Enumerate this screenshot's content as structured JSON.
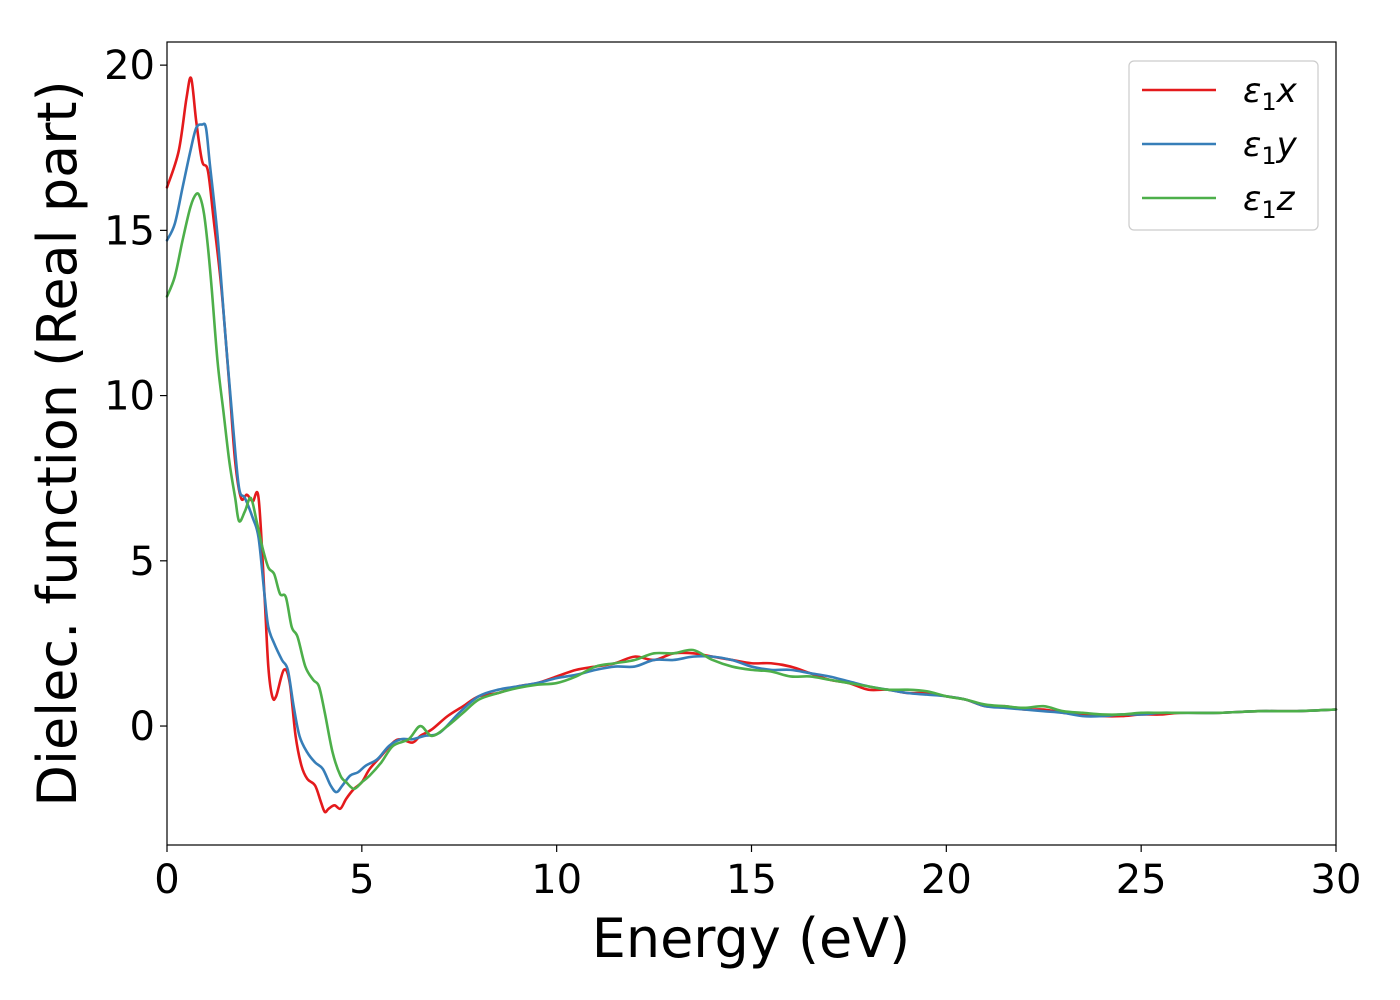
{
  "chart_data": {
    "type": "line",
    "title": "",
    "xlabel": "Energy (eV)",
    "ylabel": "Dielec. function (Real part)",
    "xlim": [
      0,
      30
    ],
    "ylim": [
      -3.6,
      20.7
    ],
    "xticks": [
      0,
      5,
      10,
      15,
      20,
      25,
      30
    ],
    "yticks": [
      0,
      5,
      10,
      15,
      20
    ],
    "grid": false,
    "legend_position": "top-right",
    "legend": [
      {
        "id": "x",
        "symbol": "ε",
        "sub": "1",
        "axis": "x",
        "color": "#e41a1c"
      },
      {
        "id": "y",
        "symbol": "ε",
        "sub": "1",
        "axis": "y",
        "color": "#377eb8"
      },
      {
        "id": "z",
        "symbol": "ε",
        "sub": "1",
        "axis": "z",
        "color": "#4daf4a"
      }
    ],
    "series": [
      {
        "id": "x",
        "color": "#e41a1c",
        "x": [
          0,
          0.3,
          0.5,
          0.62,
          0.75,
          0.9,
          1.05,
          1.2,
          1.4,
          1.6,
          1.75,
          1.9,
          2.05,
          2.2,
          2.35,
          2.5,
          2.6,
          2.7,
          2.8,
          3.0,
          3.15,
          3.3,
          3.45,
          3.6,
          3.8,
          3.95,
          4.05,
          4.15,
          4.3,
          4.45,
          4.6,
          4.8,
          5.0,
          5.2,
          5.5,
          5.8,
          6.0,
          6.3,
          6.5,
          6.8,
          7.2,
          7.6,
          8.0,
          8.5,
          9.0,
          9.5,
          10.0,
          10.5,
          11.0,
          11.5,
          12.0,
          12.5,
          13.0,
          13.5,
          14.0,
          14.5,
          15.0,
          15.5,
          16.0,
          16.5,
          17.0,
          17.5,
          18.0,
          18.5,
          19.0,
          19.5,
          20.0,
          20.5,
          21.0,
          21.5,
          22.0,
          22.5,
          23.0,
          23.5,
          24.0,
          24.5,
          25.0,
          25.5,
          26.0,
          27.0,
          28.0,
          29.0,
          30.0
        ],
        "y": [
          16.3,
          17.4,
          19.0,
          19.6,
          18.3,
          17.1,
          16.8,
          15.3,
          13.2,
          10.3,
          8.0,
          6.9,
          7.0,
          6.8,
          6.9,
          4.0,
          1.8,
          0.9,
          0.9,
          1.7,
          1.3,
          -0.3,
          -1.2,
          -1.6,
          -1.8,
          -2.3,
          -2.6,
          -2.5,
          -2.4,
          -2.5,
          -2.2,
          -1.9,
          -1.7,
          -1.3,
          -0.9,
          -0.5,
          -0.4,
          -0.5,
          -0.3,
          -0.1,
          0.3,
          0.6,
          0.9,
          1.0,
          1.2,
          1.3,
          1.5,
          1.7,
          1.8,
          1.9,
          2.1,
          2.0,
          2.2,
          2.2,
          2.1,
          2.0,
          1.9,
          1.9,
          1.8,
          1.6,
          1.4,
          1.3,
          1.1,
          1.1,
          1.0,
          1.0,
          0.9,
          0.8,
          0.6,
          0.6,
          0.5,
          0.5,
          0.4,
          0.35,
          0.3,
          0.3,
          0.35,
          0.35,
          0.4,
          0.4,
          0.45,
          0.45,
          0.5
        ]
      },
      {
        "id": "y",
        "color": "#377eb8",
        "x": [
          0,
          0.2,
          0.4,
          0.6,
          0.75,
          0.9,
          1.0,
          1.1,
          1.3,
          1.5,
          1.7,
          1.85,
          2.0,
          2.2,
          2.35,
          2.5,
          2.6,
          2.75,
          2.95,
          3.1,
          3.25,
          3.4,
          3.6,
          3.8,
          4.0,
          4.2,
          4.35,
          4.5,
          4.7,
          4.9,
          5.1,
          5.4,
          5.7,
          6.0,
          6.3,
          6.6,
          7.0,
          7.5,
          8.0,
          8.5,
          9.0,
          9.5,
          10.0,
          10.5,
          11.0,
          11.5,
          12.0,
          12.5,
          13.0,
          13.5,
          14.0,
          14.5,
          15.0,
          15.5,
          16.0,
          16.5,
          17.0,
          17.5,
          18.0,
          18.5,
          19.0,
          19.5,
          20.0,
          20.5,
          21.0,
          21.5,
          22.0,
          22.5,
          23.0,
          23.5,
          24.0,
          24.5,
          25.0,
          25.5,
          26.0,
          27.0,
          28.0,
          29.0,
          30.0
        ],
        "y": [
          14.7,
          15.2,
          16.3,
          17.4,
          18.1,
          18.2,
          18.1,
          17.0,
          14.8,
          11.8,
          9.0,
          7.2,
          6.9,
          6.3,
          5.7,
          4.0,
          3.0,
          2.5,
          2.0,
          1.7,
          0.6,
          -0.3,
          -0.8,
          -1.1,
          -1.3,
          -1.8,
          -2.0,
          -1.8,
          -1.5,
          -1.4,
          -1.2,
          -1.0,
          -0.6,
          -0.4,
          -0.4,
          -0.3,
          -0.2,
          0.4,
          0.9,
          1.1,
          1.2,
          1.3,
          1.45,
          1.55,
          1.7,
          1.8,
          1.8,
          2.0,
          2.0,
          2.1,
          2.1,
          2.0,
          1.8,
          1.7,
          1.7,
          1.6,
          1.5,
          1.35,
          1.2,
          1.1,
          1.0,
          0.95,
          0.9,
          0.8,
          0.6,
          0.55,
          0.5,
          0.45,
          0.4,
          0.3,
          0.3,
          0.35,
          0.35,
          0.4,
          0.4,
          0.4,
          0.45,
          0.45,
          0.5
        ]
      },
      {
        "id": "z",
        "color": "#4daf4a",
        "x": [
          0,
          0.2,
          0.4,
          0.6,
          0.75,
          0.85,
          0.95,
          1.05,
          1.15,
          1.3,
          1.45,
          1.6,
          1.75,
          1.85,
          2.0,
          2.15,
          2.3,
          2.45,
          2.6,
          2.75,
          2.9,
          3.05,
          3.2,
          3.35,
          3.55,
          3.75,
          3.9,
          4.05,
          4.25,
          4.45,
          4.6,
          4.8,
          5.0,
          5.2,
          5.5,
          5.8,
          6.2,
          6.5,
          6.8,
          7.2,
          7.6,
          8.0,
          8.5,
          9.0,
          9.5,
          10.0,
          10.5,
          11.0,
          11.5,
          12.0,
          12.5,
          13.0,
          13.5,
          14.0,
          14.5,
          15.0,
          15.5,
          16.0,
          16.5,
          17.0,
          17.5,
          18.0,
          18.5,
          19.0,
          19.5,
          20.0,
          20.5,
          21.0,
          21.5,
          22.0,
          22.5,
          23.0,
          23.5,
          24.0,
          24.5,
          25.0,
          25.5,
          26.0,
          27.0,
          28.0,
          29.0,
          30.0
        ],
        "y": [
          13.0,
          13.6,
          14.7,
          15.7,
          16.1,
          16.0,
          15.5,
          14.5,
          13.2,
          11.0,
          9.5,
          8.0,
          6.9,
          6.2,
          6.5,
          6.9,
          6.2,
          5.4,
          4.8,
          4.6,
          4.0,
          3.9,
          3.0,
          2.7,
          1.8,
          1.4,
          1.2,
          0.4,
          -0.8,
          -1.5,
          -1.7,
          -1.9,
          -1.7,
          -1.5,
          -1.1,
          -0.6,
          -0.4,
          0.0,
          -0.3,
          0.0,
          0.4,
          0.8,
          1.0,
          1.15,
          1.25,
          1.3,
          1.5,
          1.8,
          1.9,
          2.0,
          2.2,
          2.2,
          2.3,
          2.0,
          1.8,
          1.7,
          1.65,
          1.5,
          1.5,
          1.4,
          1.3,
          1.2,
          1.1,
          1.1,
          1.05,
          0.9,
          0.8,
          0.65,
          0.6,
          0.55,
          0.6,
          0.45,
          0.4,
          0.35,
          0.35,
          0.4,
          0.4,
          0.4,
          0.4,
          0.45,
          0.45,
          0.5
        ]
      }
    ]
  }
}
